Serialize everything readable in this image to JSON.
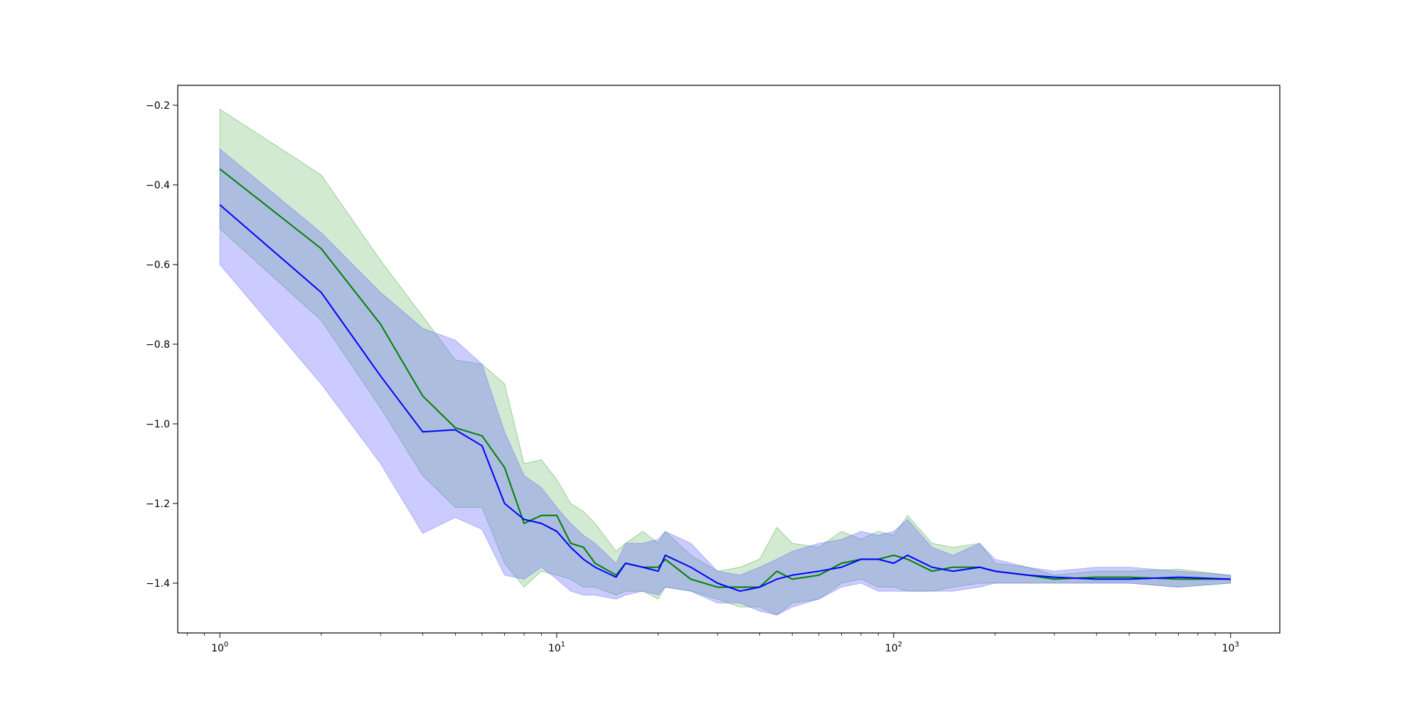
{
  "chart_data": {
    "type": "line",
    "title": "",
    "xlabel": "",
    "ylabel": "",
    "x_scale": "log",
    "xlim": [
      0.75,
      1400
    ],
    "ylim": [
      -1.525,
      -0.15
    ],
    "x_ticks": [
      {
        "value": 1,
        "base": "10",
        "exp": "0"
      },
      {
        "value": 10,
        "base": "10",
        "exp": "1"
      },
      {
        "value": 100,
        "base": "10",
        "exp": "2"
      },
      {
        "value": 1000,
        "base": "10",
        "exp": "3"
      }
    ],
    "y_ticks": [
      {
        "value": -0.2,
        "label": "−0.2"
      },
      {
        "value": -0.4,
        "label": "−0.4"
      },
      {
        "value": -0.6,
        "label": "−0.6"
      },
      {
        "value": -0.8,
        "label": "−0.8"
      },
      {
        "value": -1.0,
        "label": "−1.0"
      },
      {
        "value": -1.2,
        "label": "−1.2"
      },
      {
        "value": -1.4,
        "label": "−1.4"
      }
    ],
    "grid": false,
    "legend": "none",
    "series": [
      {
        "color": "#008000",
        "band_color": "#2ca02c",
        "band_opacity": 0.22,
        "x": [
          1,
          2,
          3,
          4,
          5,
          6,
          7,
          8,
          9,
          10,
          11,
          12,
          13,
          15,
          16,
          18,
          20,
          21,
          25,
          30,
          35,
          40,
          45,
          50,
          60,
          70,
          80,
          90,
          100,
          110,
          130,
          150,
          180,
          200,
          250,
          300,
          400,
          500,
          700,
          1000
        ],
        "y": [
          -0.36,
          -0.56,
          -0.75,
          -0.93,
          -1.01,
          -1.03,
          -1.11,
          -1.25,
          -1.23,
          -1.23,
          -1.3,
          -1.31,
          -1.35,
          -1.38,
          -1.35,
          -1.36,
          -1.36,
          -1.34,
          -1.39,
          -1.41,
          -1.41,
          -1.41,
          -1.37,
          -1.39,
          -1.38,
          -1.35,
          -1.34,
          -1.34,
          -1.33,
          -1.34,
          -1.37,
          -1.36,
          -1.36,
          -1.37,
          -1.38,
          -1.39,
          -1.385,
          -1.385,
          -1.39,
          -1.39
        ],
        "upper": [
          -0.21,
          -0.375,
          -0.59,
          -0.73,
          -0.84,
          -0.85,
          -0.9,
          -1.1,
          -1.09,
          -1.14,
          -1.2,
          -1.22,
          -1.25,
          -1.32,
          -1.3,
          -1.27,
          -1.3,
          -1.27,
          -1.33,
          -1.37,
          -1.36,
          -1.34,
          -1.26,
          -1.3,
          -1.31,
          -1.27,
          -1.29,
          -1.27,
          -1.28,
          -1.23,
          -1.3,
          -1.31,
          -1.3,
          -1.35,
          -1.36,
          -1.38,
          -1.37,
          -1.37,
          -1.365,
          -1.38
        ],
        "lower": [
          -0.51,
          -0.74,
          -0.96,
          -1.13,
          -1.21,
          -1.21,
          -1.35,
          -1.41,
          -1.37,
          -1.38,
          -1.39,
          -1.41,
          -1.41,
          -1.43,
          -1.42,
          -1.42,
          -1.44,
          -1.41,
          -1.42,
          -1.44,
          -1.46,
          -1.46,
          -1.48,
          -1.45,
          -1.44,
          -1.4,
          -1.39,
          -1.41,
          -1.41,
          -1.42,
          -1.42,
          -1.41,
          -1.4,
          -1.4,
          -1.4,
          -1.4,
          -1.4,
          -1.4,
          -1.41,
          -1.4
        ]
      },
      {
        "color": "#0000ff",
        "band_color": "#6666ff",
        "band_opacity": 0.34,
        "x": [
          1,
          2,
          3,
          4,
          5,
          6,
          7,
          8,
          9,
          10,
          11,
          12,
          13,
          15,
          16,
          18,
          20,
          21,
          25,
          30,
          35,
          40,
          45,
          50,
          60,
          70,
          80,
          90,
          100,
          110,
          130,
          150,
          180,
          200,
          250,
          300,
          400,
          500,
          700,
          1000
        ],
        "y": [
          -0.45,
          -0.67,
          -0.88,
          -1.02,
          -1.015,
          -1.055,
          -1.2,
          -1.24,
          -1.25,
          -1.27,
          -1.31,
          -1.34,
          -1.36,
          -1.385,
          -1.35,
          -1.36,
          -1.37,
          -1.33,
          -1.36,
          -1.4,
          -1.42,
          -1.41,
          -1.39,
          -1.38,
          -1.37,
          -1.36,
          -1.34,
          -1.34,
          -1.35,
          -1.33,
          -1.36,
          -1.37,
          -1.36,
          -1.37,
          -1.38,
          -1.385,
          -1.39,
          -1.39,
          -1.385,
          -1.39
        ],
        "upper": [
          -0.31,
          -0.52,
          -0.67,
          -0.76,
          -0.79,
          -0.85,
          -1.02,
          -1.13,
          -1.16,
          -1.21,
          -1.25,
          -1.28,
          -1.3,
          -1.35,
          -1.3,
          -1.3,
          -1.29,
          -1.27,
          -1.3,
          -1.37,
          -1.38,
          -1.36,
          -1.34,
          -1.32,
          -1.3,
          -1.29,
          -1.27,
          -1.28,
          -1.27,
          -1.24,
          -1.31,
          -1.33,
          -1.3,
          -1.34,
          -1.36,
          -1.37,
          -1.36,
          -1.36,
          -1.37,
          -1.38
        ],
        "lower": [
          -0.6,
          -0.9,
          -1.1,
          -1.275,
          -1.235,
          -1.265,
          -1.38,
          -1.39,
          -1.36,
          -1.39,
          -1.42,
          -1.43,
          -1.43,
          -1.44,
          -1.43,
          -1.42,
          -1.43,
          -1.41,
          -1.42,
          -1.45,
          -1.45,
          -1.47,
          -1.48,
          -1.46,
          -1.44,
          -1.41,
          -1.4,
          -1.42,
          -1.42,
          -1.42,
          -1.42,
          -1.42,
          -1.41,
          -1.4,
          -1.4,
          -1.4,
          -1.4,
          -1.4,
          -1.41,
          -1.4
        ]
      }
    ]
  }
}
